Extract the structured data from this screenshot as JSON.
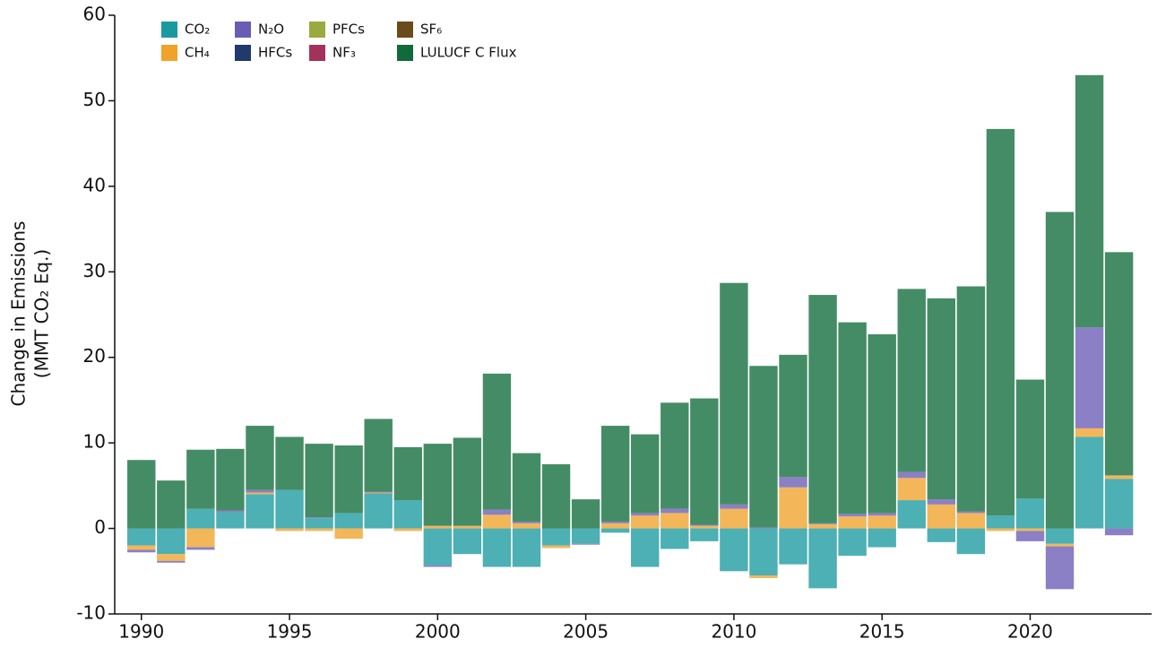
{
  "chart_data": {
    "type": "stacked_bar",
    "ylabel": [
      "Change in Emissions",
      "(MMT CO₂ Eq.)"
    ],
    "x": [
      1990,
      1991,
      1992,
      1993,
      1994,
      1995,
      1996,
      1997,
      1998,
      1999,
      2000,
      2001,
      2002,
      2003,
      2004,
      2005,
      2006,
      2007,
      2008,
      2009,
      2010,
      2011,
      2012,
      2013,
      2014,
      2015,
      2016,
      2017,
      2018,
      2019,
      2020,
      2021,
      2022,
      2023
    ],
    "xlim": [
      1989.1,
      2024.1
    ],
    "xticks": [
      1990,
      1995,
      2000,
      2005,
      2010,
      2015,
      2020
    ],
    "ylim": [
      -10,
      60
    ],
    "yticks": [
      -10,
      0,
      10,
      20,
      30,
      40,
      50,
      60
    ],
    "series": [
      {
        "name": "CO₂",
        "color": "#1a9a9f",
        "values": [
          -2,
          -3,
          2.3,
          1.9,
          4,
          4.5,
          1.2,
          1.8,
          4.1,
          3.3,
          -4.3,
          -3,
          -4.5,
          -4.5,
          -2,
          -1.8,
          -0.5,
          -4.5,
          -2.4,
          -1.5,
          -5,
          -5.5,
          -4.2,
          -7,
          -3.2,
          -2.2,
          3.3,
          -1.6,
          -3,
          1.5,
          3.5,
          -1.8,
          10.7,
          5.8
        ]
      },
      {
        "name": "CH₄",
        "color": "#f0a22a",
        "values": [
          -0.5,
          -0.8,
          -2.2,
          0,
          0.2,
          -0.3,
          -0.3,
          -1.2,
          0.1,
          -0.3,
          0.3,
          0.3,
          1.6,
          0.6,
          -0.3,
          0,
          0.6,
          1.5,
          1.8,
          0.3,
          2.3,
          -0.3,
          4.8,
          0.5,
          1.4,
          1.5,
          2.6,
          2.8,
          1.8,
          -0.3,
          -0.3,
          -0.3,
          1,
          0.4
        ]
      },
      {
        "name": "N₂O",
        "color": "#6a5cb5",
        "values": [
          -0.3,
          -0.2,
          -0.3,
          0.2,
          0.3,
          0,
          0.1,
          0,
          0.1,
          0,
          -0.2,
          0,
          0.6,
          0.2,
          0,
          -0.1,
          0.2,
          0.3,
          0.5,
          0.1,
          0.5,
          0.1,
          1.2,
          0.1,
          0.3,
          0.3,
          0.7,
          0.6,
          0.2,
          0,
          -1.2,
          -5,
          11.8,
          -0.8
        ]
      },
      {
        "name": "HFCs",
        "color": "#1f3a6b",
        "values": [
          0,
          0,
          0,
          0,
          0,
          0,
          0,
          0,
          0,
          0,
          0,
          0,
          0,
          0,
          0,
          0,
          0,
          0,
          0,
          0,
          0,
          0,
          0,
          0,
          0,
          0,
          0,
          0,
          0,
          0,
          0,
          0,
          0,
          0
        ]
      },
      {
        "name": "PFCs",
        "color": "#9aaa3e",
        "values": [
          0,
          0,
          0,
          0,
          0,
          0,
          0,
          0,
          0,
          0,
          0,
          0,
          0,
          0,
          0,
          0,
          0,
          0,
          0,
          0,
          0,
          0,
          0,
          0,
          0,
          0,
          0,
          0,
          0,
          0,
          0,
          0,
          0,
          0
        ]
      },
      {
        "name": "NF₃",
        "color": "#a3325a",
        "values": [
          0,
          0,
          0,
          0,
          0,
          0,
          0,
          0,
          0,
          0,
          0,
          0,
          0,
          0,
          0,
          0,
          0,
          0,
          0,
          0,
          0,
          0,
          0,
          0,
          0,
          0,
          0,
          0,
          0,
          0,
          0,
          0,
          0,
          0
        ]
      },
      {
        "name": "SF₆",
        "color": "#6b4a1c",
        "values": [
          0,
          0,
          0,
          0,
          0,
          0,
          0,
          0,
          0,
          0,
          0,
          0,
          0,
          0,
          0,
          0,
          0,
          0,
          0,
          0,
          0,
          0,
          0,
          0,
          0,
          0,
          0,
          0,
          0,
          0,
          0,
          0,
          0,
          0
        ]
      },
      {
        "name": "LULUCF C Flux",
        "color": "#0f6b3a",
        "values": [
          8,
          5.6,
          6.9,
          7.2,
          7.5,
          6.2,
          8.6,
          7.9,
          8.5,
          6.2,
          9.6,
          10.3,
          15.9,
          8,
          7.5,
          3.4,
          11.2,
          9.2,
          12.4,
          14.8,
          25.9,
          18.9,
          14.3,
          26.7,
          22.4,
          20.9,
          21.4,
          23.5,
          26.3,
          45.2,
          13.9,
          37,
          29.5,
          26.1
        ]
      }
    ]
  }
}
